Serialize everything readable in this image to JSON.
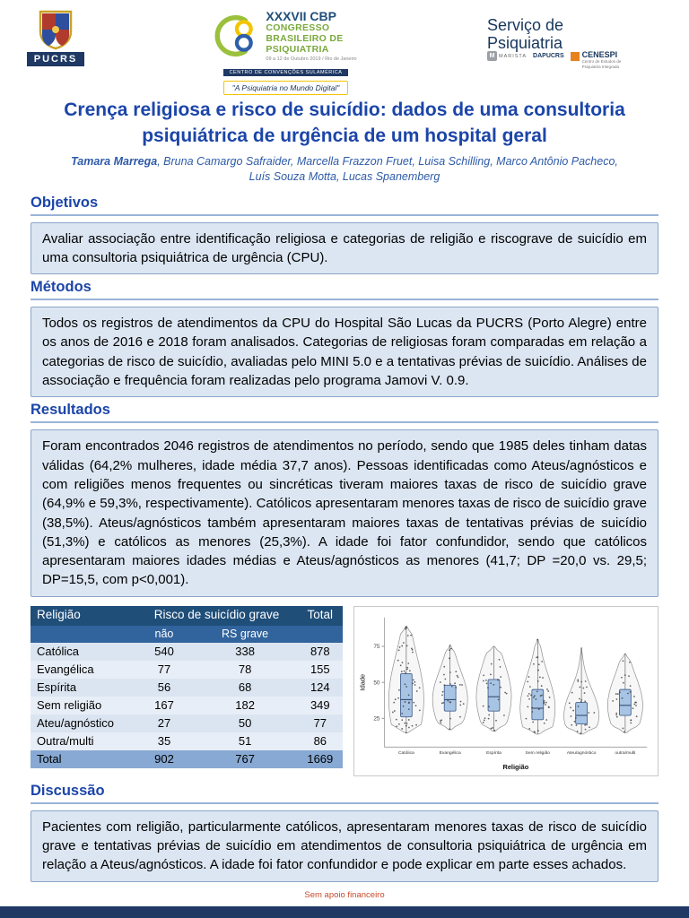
{
  "header": {
    "pucrs_label": "PUCRS",
    "cbp": {
      "title": "XXXVII CBP",
      "line2": "CONGRESSO",
      "line3": "BRASILEIRO DE",
      "line4": "PSIQUIATRIA",
      "date": "09 a 12 de Outubro 2019 / Rio de Janeiro",
      "venue": "CENTRO DE CONVENÇÕES SULAMÉRICA",
      "tagline": "\"A Psiquiatria no Mundo Digital\""
    },
    "right": {
      "line1": "Serviço de",
      "line2": "Psiquiatria",
      "marista": "MARISTA",
      "dapucrs": "DAPUCRS",
      "cenespi": "CENESPI",
      "cenespi_sub": "Centro de Estudos de Psiquiatria Integrada"
    }
  },
  "title": "Crença religiosa e risco de suicídio: dados de uma consultoria psiquiátrica de urgência de um hospital geral",
  "authors": {
    "first": "Tamara Marrega",
    "rest": ", Bruna Camargo Safraider, Marcella Frazzon Fruet, Luisa Schilling, Marco Antônio Pacheco, Luís Souza Motta, Lucas Spanemberg"
  },
  "sections": {
    "objetivos": {
      "heading": "Objetivos",
      "body": "Avaliar associação entre identificação religiosa e categorias de religião e riscograve de suicídio em uma consultoria psiquiátrica de urgência (CPU)."
    },
    "metodos": {
      "heading": "Métodos",
      "body": "Todos os registros de atendimentos da CPU do Hospital São Lucas da PUCRS (Porto Alegre) entre os anos de 2016 e 2018 foram analisados. Categorias de religiosas foram comparadas em relação a categorias de risco de suicídio, avaliadas pelo MINI 5.0 e a tentativas prévias de suicídio. Análises de associação e frequência foram realizadas pelo programa Jamovi V. 0.9."
    },
    "resultados": {
      "heading": "Resultados",
      "body": "Foram encontrados 2046 registros de atendimentos no período, sendo que 1985 deles tinham datas válidas (64,2% mulheres, idade média 37,7 anos). Pessoas identificadas como Ateus/agnósticos e com religiões menos frequentes ou sincréticas tiveram maiores taxas de risco de suicídio grave (64,9% e 59,3%, respectivamente). Católicos apresentaram menores taxas de risco de suicídio grave (38,5%). Ateus/agnósticos também apresentaram maiores taxas de tentativas prévias de suicídio (51,3%) e católicos as menores (25,3%). A idade foi fator confundidor, sendo que católicos apresentaram maiores idades médias e Ateus/agnósticos as menores (41,7; DP =20,0 vs. 29,5; DP=15,5, com p<0,001)."
    },
    "discussao": {
      "heading": "Discussão",
      "body": "Pacientes com religião, particularmente católicos, apresentaram menores taxas de risco de suicídio grave e tentativas prévias de suicídio em atendimentos de consultoria psiquiátrica de urgência em relação a Ateus/agnósticos. A idade foi fator confundidor e pode explicar em parte esses achados."
    }
  },
  "table": {
    "headers": {
      "religiao": "Religião",
      "risco_span": "Risco de suicídio grave",
      "total": "Total"
    },
    "subheaders": [
      "não",
      "RS grave"
    ],
    "rows": [
      [
        "Católica",
        "540",
        "338",
        "878"
      ],
      [
        "Evangélica",
        "77",
        "78",
        "155"
      ],
      [
        "Espírita",
        "56",
        "68",
        "124"
      ],
      [
        "Sem religião",
        "167",
        "182",
        "349"
      ],
      [
        "Ateu/agnóstico",
        "27",
        "50",
        "77"
      ],
      [
        "Outra/multi",
        "35",
        "51",
        "86"
      ]
    ],
    "total_row": [
      "Total",
      "902",
      "767",
      "1669"
    ]
  },
  "chart_data": {
    "type": "violin",
    "title": "",
    "categories": [
      "Católica",
      "Evangélica",
      "Espírita",
      "Sem religião",
      "Ateu/agnóstico",
      "outra/multi"
    ],
    "xlabel": "Religião",
    "ylabel": "Idade",
    "yticks": [
      25,
      50,
      75
    ],
    "ylim": [
      5,
      95
    ],
    "legend": "none",
    "grid": false,
    "series": [
      {
        "name": "Católica",
        "lo": 15,
        "q1": 26,
        "median": 38,
        "q3": 56,
        "hi": 89,
        "points": 60
      },
      {
        "name": "Evangélica",
        "lo": 17,
        "q1": 30,
        "median": 38,
        "q3": 48,
        "hi": 76,
        "points": 34
      },
      {
        "name": "Espírita",
        "lo": 16,
        "q1": 30,
        "median": 40,
        "q3": 52,
        "hi": 75,
        "points": 30
      },
      {
        "name": "Sem religião",
        "lo": 14,
        "q1": 24,
        "median": 32,
        "q3": 45,
        "hi": 80,
        "points": 46
      },
      {
        "name": "Ateu/agnóstico",
        "lo": 14,
        "q1": 21,
        "median": 27,
        "q3": 36,
        "hi": 74,
        "points": 30
      },
      {
        "name": "outra/multi",
        "lo": 15,
        "q1": 27,
        "median": 34,
        "q3": 45,
        "hi": 70,
        "points": 30
      }
    ]
  },
  "footer": {
    "note": "Sem apoio financeiro"
  },
  "colors": {
    "accent_blue": "#1b45a8",
    "navy": "#1f3864",
    "box_bg": "#dce6f2",
    "table_header": "#1f4e79",
    "table_total": "#87a9d3",
    "green": "#7aa93c",
    "yellow": "#f2c500",
    "orange": "#e8821e",
    "footer_red": "#c9492a",
    "box_plot_fill": "#a8c4e5"
  }
}
